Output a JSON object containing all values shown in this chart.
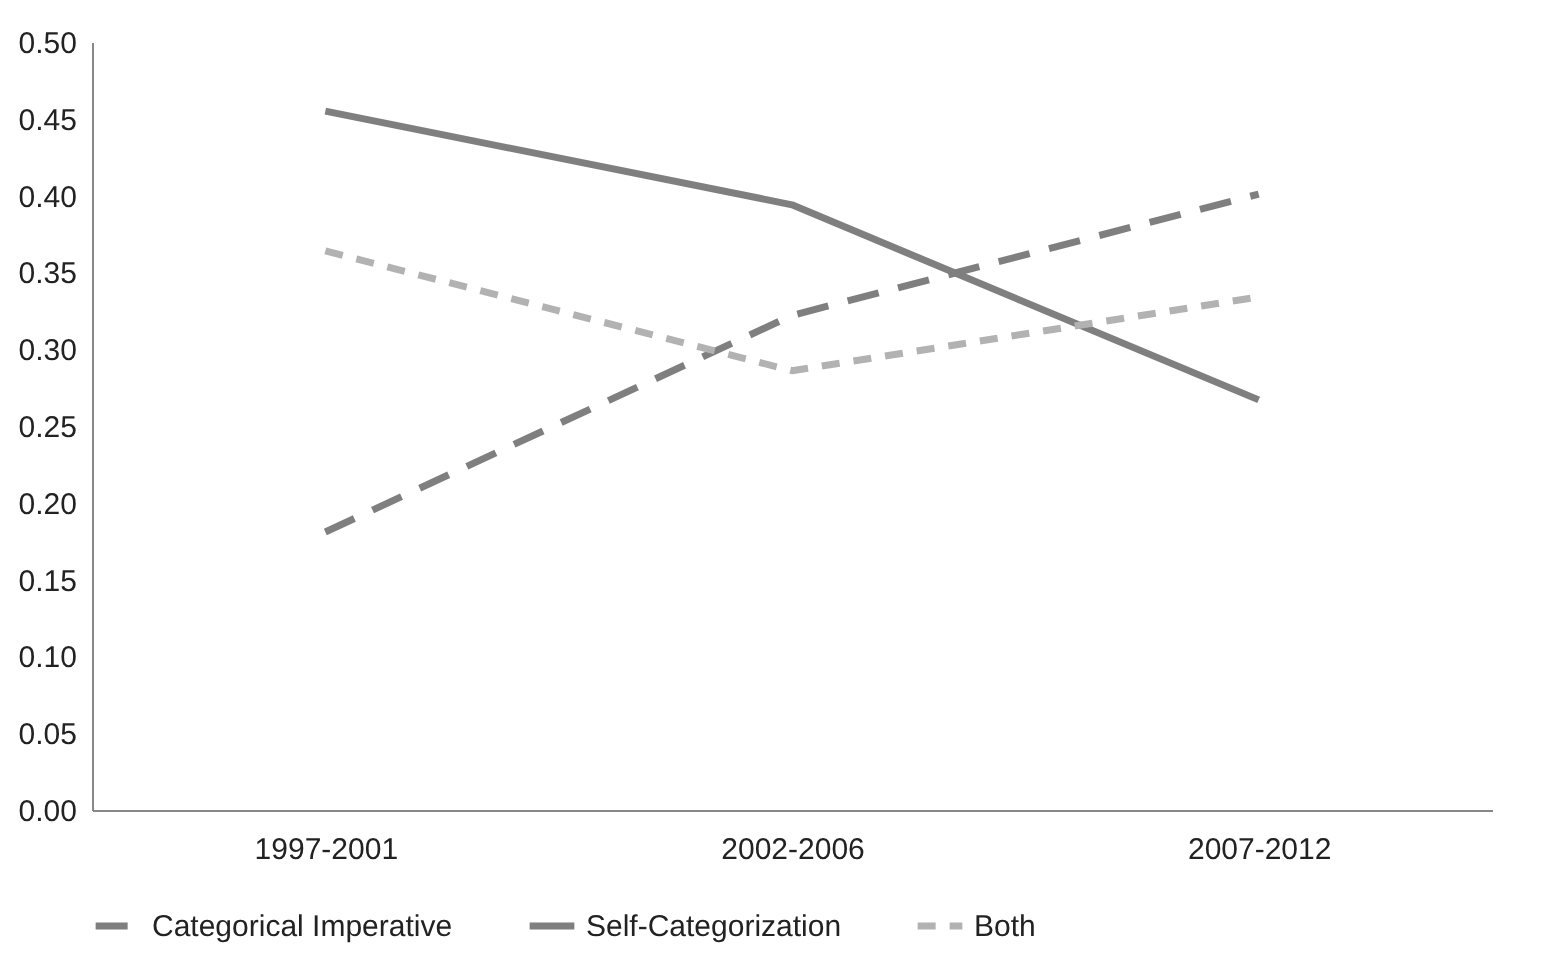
{
  "chart_data": {
    "type": "line",
    "categories": [
      "1997-2001",
      "2002-2006",
      "2007-2012"
    ],
    "series": [
      {
        "name": "Categorical Imperative",
        "color": "#7f7f7f",
        "line_style": "dashed",
        "values": [
          0.181,
          0.322,
          0.401
        ]
      },
      {
        "name": "Self-Categorization",
        "color": "#7f7f7f",
        "line_style": "solid",
        "values": [
          0.455,
          0.394,
          0.267
        ]
      },
      {
        "name": "Both",
        "color": "#b2b2b2",
        "line_style": "dotted",
        "values": [
          0.364,
          0.286,
          0.334
        ]
      }
    ],
    "ylim": [
      0,
      0.5
    ],
    "yticks": [
      {
        "value": 0,
        "label": "0.00"
      },
      0.05,
      {
        "value": 0.1,
        "label": "0.10"
      },
      0.15,
      {
        "value": 0.2,
        "label": "0.20"
      },
      0.25,
      {
        "value": 0.3,
        "label": "0.30"
      },
      0.35,
      {
        "value": 0.4,
        "label": "0.40"
      },
      0.45,
      {
        "value": 0.5,
        "label": "0.50"
      }
    ],
    "grid": false,
    "legend": "bottom",
    "marker": "none"
  }
}
